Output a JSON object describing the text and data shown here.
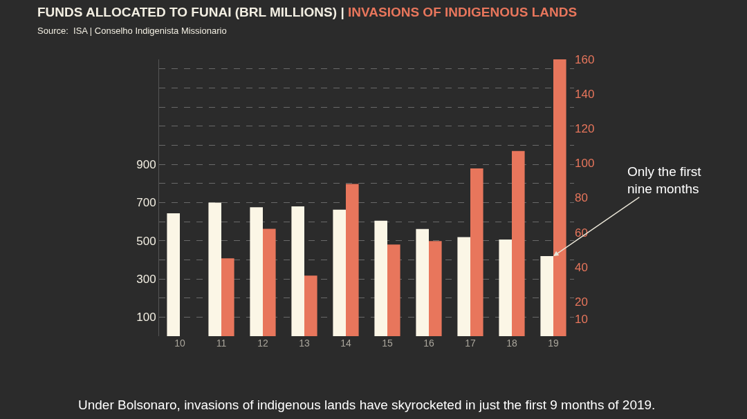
{
  "chart_data": {
    "type": "bar",
    "title": "FUNDS ALLOCATED TO FUNAI (BRL MILLIONS) | INVASIONS OF INDIGENOUS LANDS",
    "subtitle": "Source:  ISA | Conselho Indigenista Missionario",
    "categories": [
      "10",
      "11",
      "12",
      "13",
      "14",
      "15",
      "16",
      "17",
      "18",
      "19"
    ],
    "series": [
      {
        "color": "#fbf6e6",
        "values": [
          644,
          700,
          675,
          680,
          663,
          605,
          561,
          519,
          506,
          419
        ]
      },
      {
        "color": "#e8765c",
        "axis": "y2",
        "values": [
          null,
          45,
          62,
          35,
          88,
          53,
          55,
          97,
          107,
          160
        ]
      }
    ],
    "ylim": [
      0,
      1450
    ],
    "yticks": [
      100,
      {
        "value": 200,
        "label": null
      },
      300,
      {
        "value": 400,
        "label": null
      },
      500,
      {
        "value": 600,
        "label": null
      },
      700,
      {
        "value": 800,
        "label": null
      },
      900,
      {
        "value": 1000,
        "label": null
      },
      {
        "value": 1100,
        "label": null
      },
      {
        "value": 1200,
        "label": null
      },
      {
        "value": 1300,
        "label": null
      },
      {
        "value": 1400,
        "label": null
      }
    ],
    "y2lim": [
      0,
      160
    ],
    "y2ticks": [
      10,
      20,
      40,
      60,
      80,
      100,
      120,
      140,
      160
    ],
    "grid": "y",
    "annotations": [
      {
        "text": "Only the first nine months",
        "x": "19",
        "y": 419
      },
      "Under Bolsonaro, invasions of indigenous lands have skyrocketed in just the first 9 months of 2019."
    ]
  }
}
